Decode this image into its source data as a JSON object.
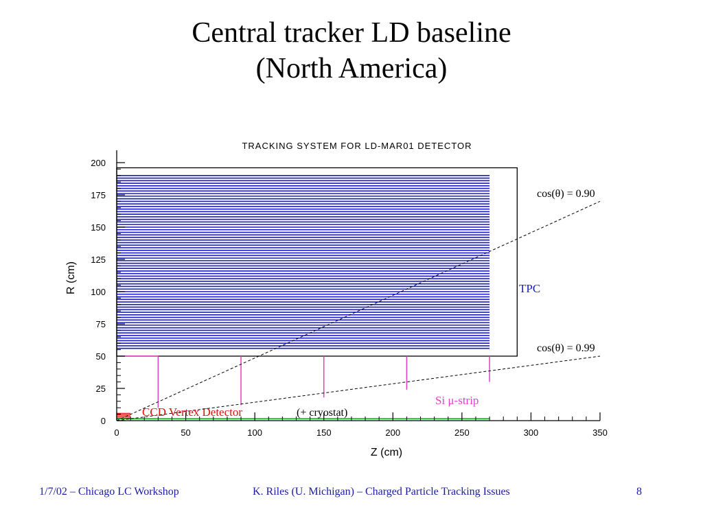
{
  "slide": {
    "title_line1": "Central tracker LD baseline",
    "title_line2": "(North America)"
  },
  "figure": {
    "title": "TRACKING SYSTEM FOR LD-MAR01 DETECTOR",
    "xlabel": "Z (cm)",
    "ylabel": "R (cm)",
    "x_ticks": [
      "0",
      "50",
      "100",
      "150",
      "200",
      "250",
      "300",
      "350"
    ],
    "y_ticks": [
      "0",
      "25",
      "50",
      "75",
      "100",
      "125",
      "150",
      "175",
      "200"
    ],
    "x_range": [
      0,
      350
    ],
    "y_range": [
      0,
      200
    ],
    "labels": {
      "tpc": "TPC",
      "cos90_prefix": "cos(θ) = ",
      "cos90_value": "0.90",
      "cos99_prefix": "cos(θ) = ",
      "cos99_value": "0.99",
      "si_strip": "Si μ-strip",
      "ccd": "CCD Vertex Detector",
      "cryostat": "(+ cryostat)"
    },
    "tpc": {
      "z_max": 270,
      "r_min": 56,
      "r_max": 190,
      "outer_z": 290,
      "outer_r": 196,
      "inner_r": 50
    },
    "si_strips": [
      {
        "z": 30,
        "r_top": 50,
        "r_bottom": 10
      },
      {
        "z": 90,
        "r_top": 50,
        "r_bottom": 12
      },
      {
        "z": 150,
        "r_top": 50,
        "r_bottom": 18
      },
      {
        "z": 210,
        "r_top": 50,
        "r_bottom": 24
      },
      {
        "z": 270,
        "r_top": 50,
        "r_bottom": 30
      }
    ],
    "cos_lines": [
      {
        "name": "cos(θ) = 0.90",
        "z_end": 350,
        "r_end": 170
      },
      {
        "name": "cos(θ) = 0.99",
        "z_end": 350,
        "r_end": 50
      }
    ],
    "colors": {
      "tpc_lines": "#1a1acc",
      "si": "#e040c8",
      "ccd": "#e01010",
      "green": "#20c020",
      "tpc_label": "#1a1acc",
      "si_label": "#e040c8"
    }
  },
  "footer": {
    "left": "1/7/02 – Chicago LC Workshop",
    "center": "K. Riles (U. Michigan) – Charged Particle Tracking Issues",
    "page": "8"
  }
}
